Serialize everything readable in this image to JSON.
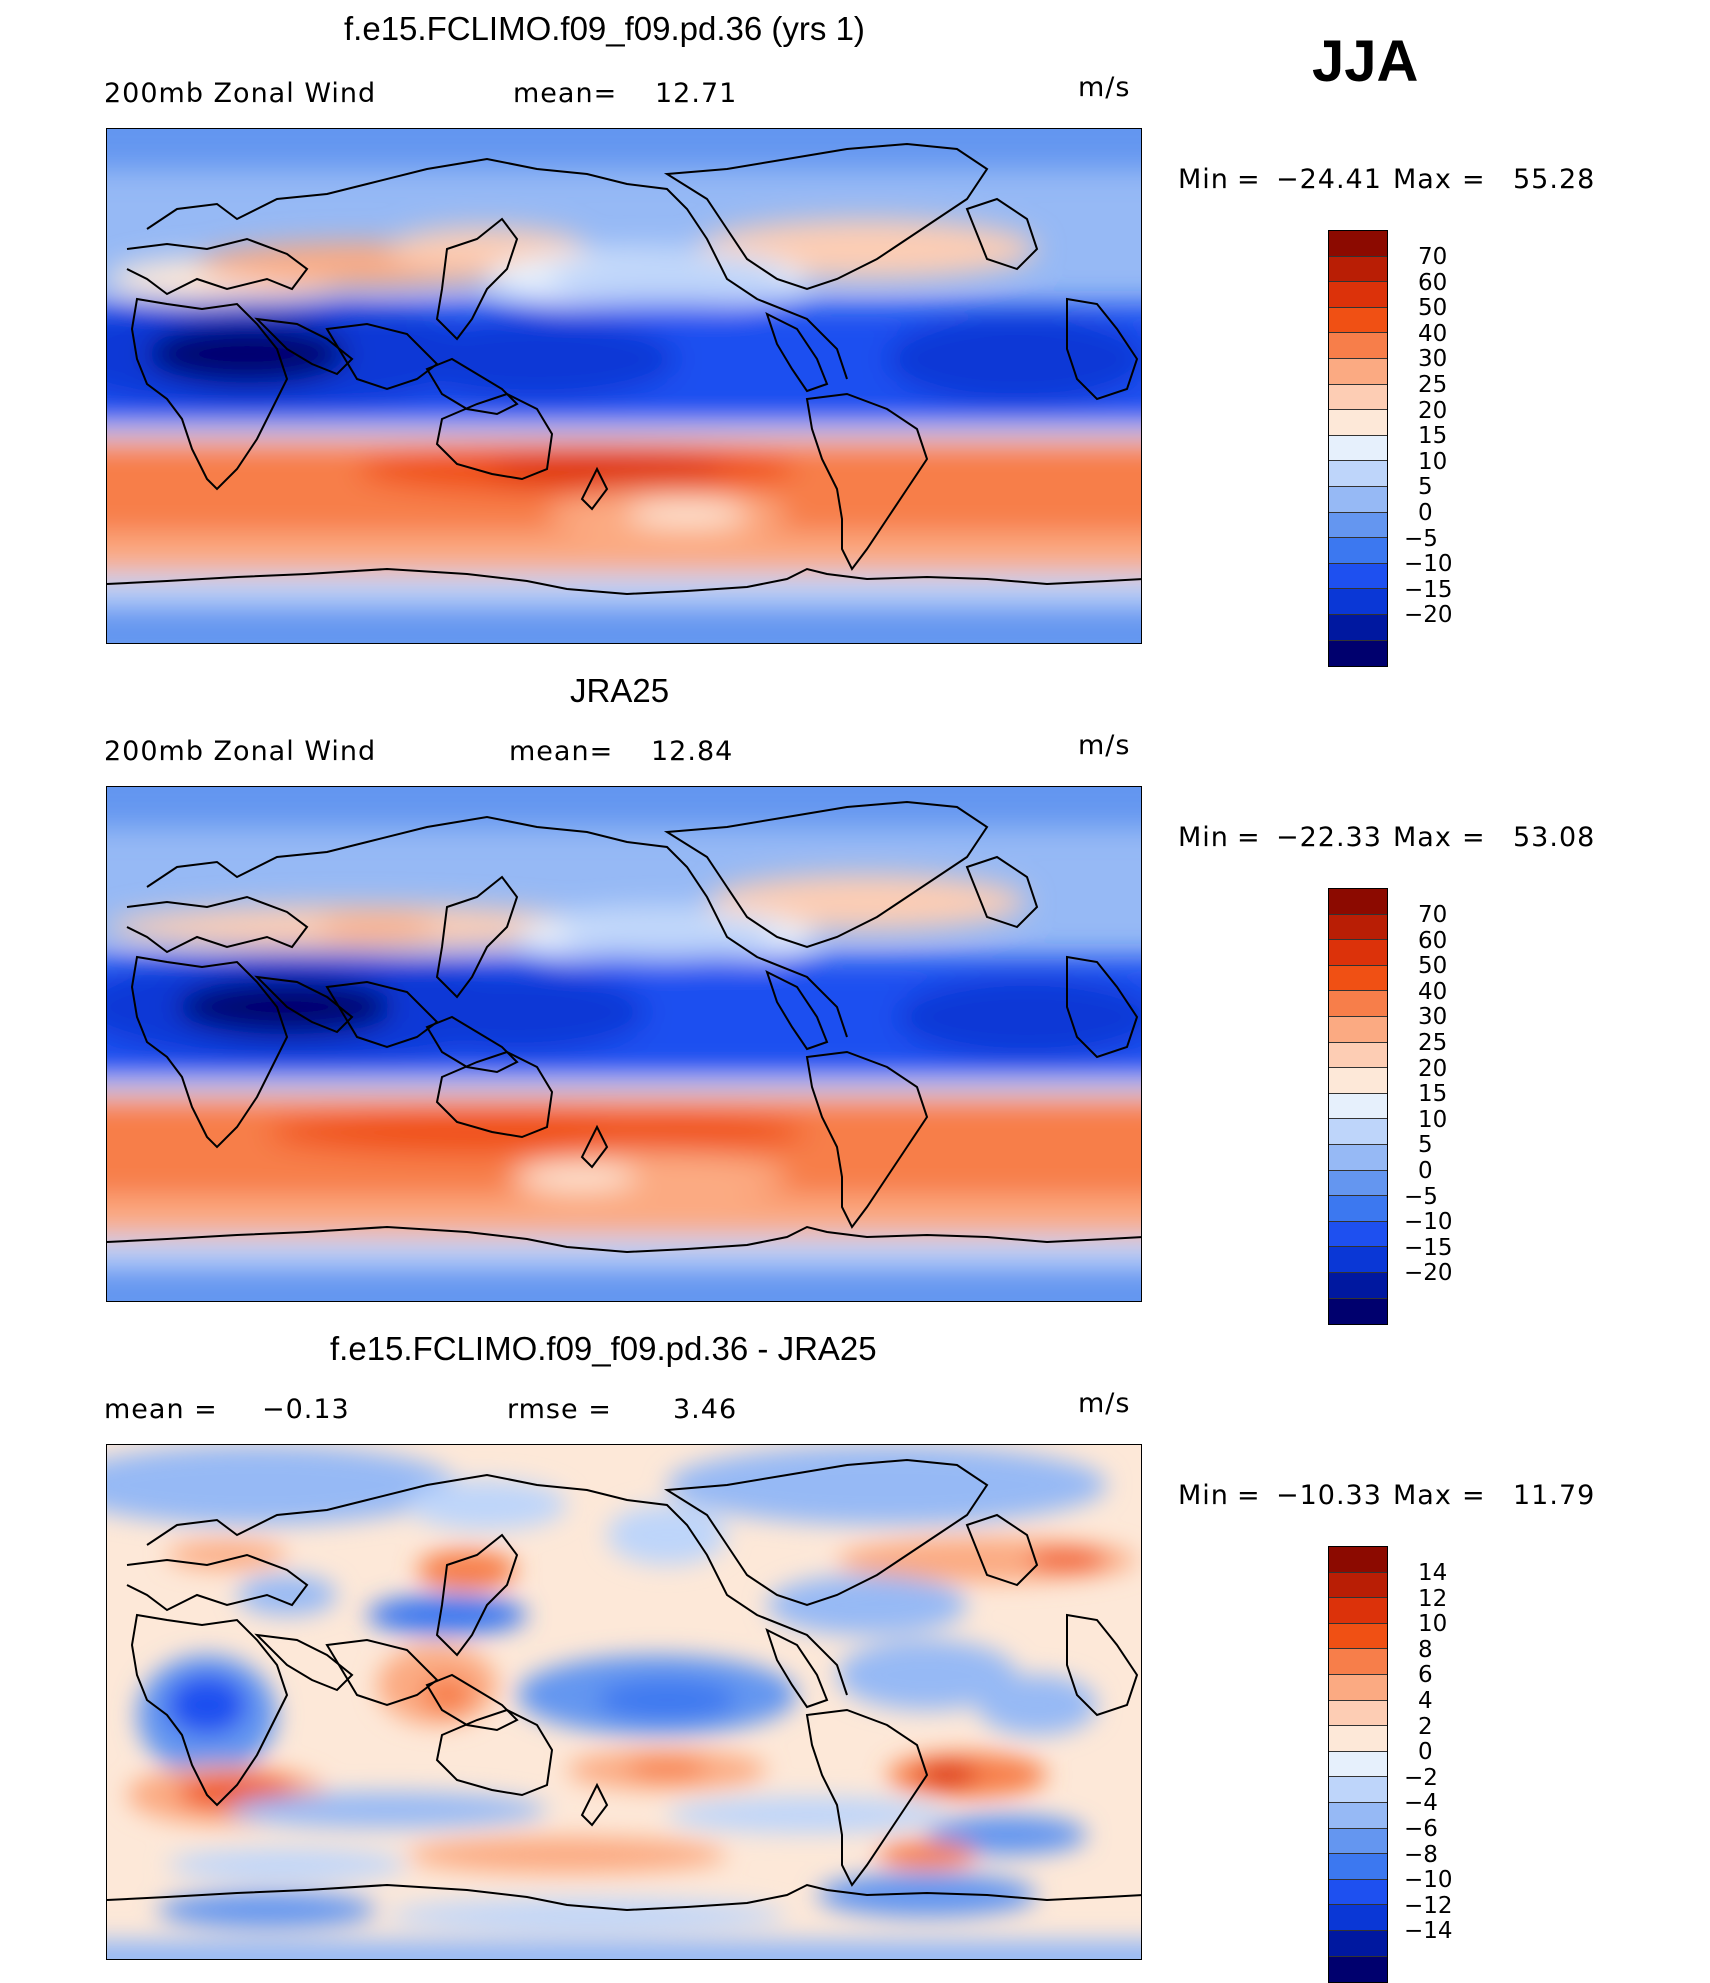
{
  "season": "JJA",
  "units": "m/s",
  "colors": {
    "diverging": [
      "#00006e",
      "#0018a0",
      "#0a37d6",
      "#1e50f0",
      "#3c78f0",
      "#6496f0",
      "#96b9f5",
      "#bed5fa",
      "#e6f0fc",
      "#fde8d8",
      "#fdcdb4",
      "#fbaa82",
      "#f77e4a",
      "#f05014",
      "#dc320a",
      "#b91e05",
      "#8c0a00"
    ],
    "coast": "#000000"
  },
  "panels": [
    {
      "title": "f.e15.FCLIMO.f09_f09.pd.36 (yrs 1)",
      "left_label": "200mb Zonal Wind",
      "mean_label": "mean=",
      "mean_value": "12.71",
      "units": "m/s",
      "min_label": "Min",
      "min_value": "−24.41",
      "max_label": "Max",
      "max_value": "55.28",
      "colorbar_labels": [
        "70",
        "60",
        "50",
        "40",
        "30",
        "25",
        "20",
        "15",
        "10",
        "5",
        "0",
        "−5",
        "−10",
        "−15",
        "−20"
      ],
      "colorbar_colors": [
        "#8c0a00",
        "#b91e05",
        "#dc320a",
        "#f05014",
        "#f77e4a",
        "#fbaa82",
        "#fdcdb4",
        "#fde8d8",
        "#e6f0fc",
        "#bed5fa",
        "#96b9f5",
        "#6496f0",
        "#3c78f0",
        "#1e50f0",
        "#0a37d6",
        "#0018a0",
        "#00006e"
      ]
    },
    {
      "title": "JRA25",
      "left_label": "200mb Zonal Wind",
      "mean_label": "mean=",
      "mean_value": "12.84",
      "units": "m/s",
      "min_label": "Min",
      "min_value": "−22.33",
      "max_label": "Max",
      "max_value": "53.08",
      "colorbar_labels": [
        "70",
        "60",
        "50",
        "40",
        "30",
        "25",
        "20",
        "15",
        "10",
        "5",
        "0",
        "−5",
        "−10",
        "−15",
        "−20"
      ],
      "colorbar_colors": [
        "#8c0a00",
        "#b91e05",
        "#dc320a",
        "#f05014",
        "#f77e4a",
        "#fbaa82",
        "#fdcdb4",
        "#fde8d8",
        "#e6f0fc",
        "#bed5fa",
        "#96b9f5",
        "#6496f0",
        "#3c78f0",
        "#1e50f0",
        "#0a37d6",
        "#0018a0",
        "#00006e"
      ]
    },
    {
      "title": "f.e15.FCLIMO.f09_f09.pd.36 - JRA25",
      "left_label": "mean =",
      "left_value": "−0.13",
      "mean_label": "rmse =",
      "mean_value": "3.46",
      "units": "m/s",
      "min_label": "Min",
      "min_value": "−10.33",
      "max_label": "Max",
      "max_value": "11.79",
      "colorbar_labels": [
        "14",
        "12",
        "10",
        "8",
        "6",
        "4",
        "2",
        "0",
        "−2",
        "−4",
        "−6",
        "−8",
        "−10",
        "−12",
        "−14"
      ],
      "colorbar_colors": [
        "#8c0a00",
        "#b91e05",
        "#dc320a",
        "#f05014",
        "#f77e4a",
        "#fbaa82",
        "#fdcdb4",
        "#fde8d8",
        "#e6f0fc",
        "#bed5fa",
        "#96b9f5",
        "#6496f0",
        "#3c78f0",
        "#1e50f0",
        "#0a37d6",
        "#0018a0",
        "#00006e"
      ]
    }
  ]
}
